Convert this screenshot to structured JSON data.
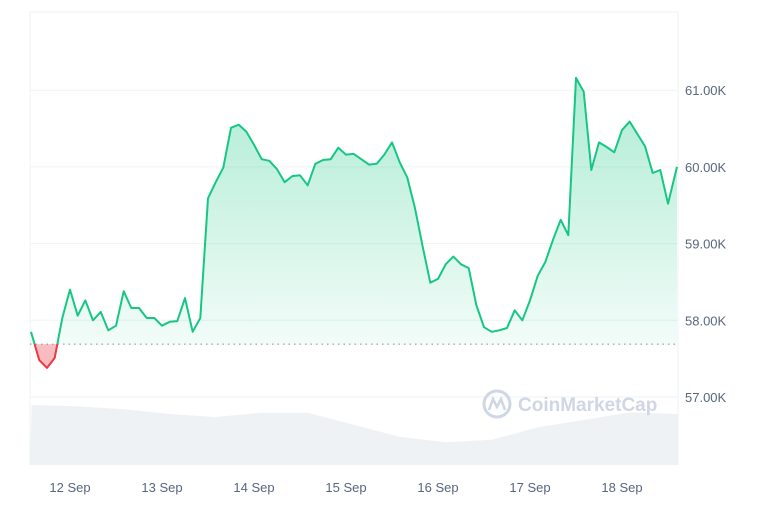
{
  "watermark": "CoinMarketCap",
  "chart_data": {
    "type": "area",
    "title": "",
    "xlabel": "",
    "ylabel": "",
    "ylim": [
      56.13,
      61.92
    ],
    "y_unit": "K",
    "y_ticks": [
      "57.00K",
      "58.00K",
      "59.00K",
      "60.00K",
      "61.00K"
    ],
    "y_tick_values": [
      57,
      58,
      59,
      60,
      61
    ],
    "x_ticks": [
      "12 Sep",
      "13 Sep",
      "14 Sep",
      "15 Sep",
      "16 Sep",
      "17 Sep",
      "18 Sep"
    ],
    "y_axis_position": "right",
    "grid": true,
    "reference_price": 57.69,
    "colors": {
      "up": "#16c784",
      "down": "#ea3943",
      "grid": "#eff2f5",
      "volume": "#eff2f5",
      "text": "#58667e"
    },
    "series": [
      {
        "x": [
          "11 Sep 14:00",
          "11 Sep 16:00",
          "11 Sep 18:00",
          "11 Sep 20:00",
          "11 Sep 22:00",
          "12 Sep 00:00",
          "12 Sep 02:00",
          "12 Sep 04:00",
          "12 Sep 06:00",
          "12 Sep 08:00",
          "12 Sep 10:00",
          "12 Sep 12:00",
          "12 Sep 14:00",
          "12 Sep 16:00",
          "12 Sep 18:00",
          "12 Sep 20:00",
          "12 Sep 22:00",
          "13 Sep 00:00",
          "13 Sep 02:00",
          "13 Sep 04:00",
          "13 Sep 06:00",
          "13 Sep 08:00",
          "13 Sep 10:00",
          "13 Sep 12:00",
          "13 Sep 14:00",
          "13 Sep 16:00",
          "13 Sep 18:00",
          "13 Sep 20:00",
          "13 Sep 22:00",
          "14 Sep 00:00",
          "14 Sep 02:00",
          "14 Sep 04:00",
          "14 Sep 06:00",
          "14 Sep 08:00",
          "14 Sep 10:00",
          "14 Sep 12:00",
          "14 Sep 14:00",
          "14 Sep 16:00",
          "14 Sep 18:00",
          "14 Sep 20:00",
          "14 Sep 22:00",
          "15 Sep 00:00",
          "15 Sep 02:00",
          "15 Sep 04:00",
          "15 Sep 06:00",
          "15 Sep 08:00",
          "15 Sep 10:00",
          "15 Sep 12:00",
          "15 Sep 14:00",
          "15 Sep 16:00",
          "15 Sep 18:00",
          "15 Sep 20:00",
          "15 Sep 22:00",
          "16 Sep 00:00",
          "16 Sep 02:00",
          "16 Sep 04:00",
          "16 Sep 06:00",
          "16 Sep 08:00",
          "16 Sep 10:00",
          "16 Sep 12:00",
          "16 Sep 14:00",
          "16 Sep 16:00",
          "16 Sep 18:00",
          "16 Sep 20:00",
          "16 Sep 22:00",
          "17 Sep 00:00",
          "17 Sep 02:00",
          "17 Sep 04:00",
          "17 Sep 06:00",
          "17 Sep 08:00",
          "17 Sep 10:00",
          "17 Sep 12:00",
          "17 Sep 14:00",
          "17 Sep 16:00",
          "17 Sep 18:00",
          "17 Sep 20:00",
          "17 Sep 22:00",
          "18 Sep 00:00",
          "18 Sep 02:00",
          "18 Sep 04:00",
          "18 Sep 06:00",
          "18 Sep 08:00",
          "18 Sep 10:00",
          "18 Sep 12:00",
          "18 Sep 14:00"
        ],
        "values": [
          57.85,
          57.48,
          57.38,
          57.51,
          58.03,
          58.4,
          58.06,
          58.26,
          58.0,
          58.11,
          57.87,
          57.93,
          58.38,
          58.16,
          58.16,
          58.03,
          58.03,
          57.93,
          57.98,
          57.99,
          58.29,
          57.85,
          58.03,
          59.59,
          59.8,
          59.99,
          60.51,
          60.55,
          60.46,
          60.29,
          60.1,
          60.08,
          59.97,
          59.8,
          59.88,
          59.89,
          59.76,
          60.04,
          60.09,
          60.1,
          60.25,
          60.16,
          60.17,
          60.1,
          60.03,
          60.04,
          60.16,
          60.32,
          60.06,
          59.86,
          59.46,
          58.96,
          58.49,
          58.54,
          58.73,
          58.83,
          58.73,
          58.68,
          58.2,
          57.91,
          57.85,
          57.87,
          57.9,
          58.13,
          58.0,
          58.26,
          58.58,
          58.76,
          59.05,
          59.31,
          59.11,
          61.16,
          60.98,
          59.96,
          60.32,
          60.26,
          60.19,
          60.48,
          60.59,
          60.43,
          60.27,
          59.92,
          59.96,
          59.52,
          60.0
        ]
      }
    ],
    "volume": {
      "x": [
        "11 Sep 14:00",
        "12 Sep 02:00",
        "12 Sep 14:00",
        "13 Sep 02:00",
        "13 Sep 14:00",
        "14 Sep 02:00",
        "14 Sep 14:00",
        "15 Sep 02:00",
        "15 Sep 14:00",
        "16 Sep 02:00",
        "16 Sep 14:00",
        "17 Sep 02:00",
        "17 Sep 14:00",
        "18 Sep 02:00",
        "18 Sep 14:00"
      ],
      "relative_values": [
        1.0,
        0.98,
        0.93,
        0.85,
        0.8,
        0.87,
        0.87,
        0.67,
        0.47,
        0.38,
        0.42,
        0.63,
        0.75,
        0.88,
        0.85
      ]
    }
  }
}
